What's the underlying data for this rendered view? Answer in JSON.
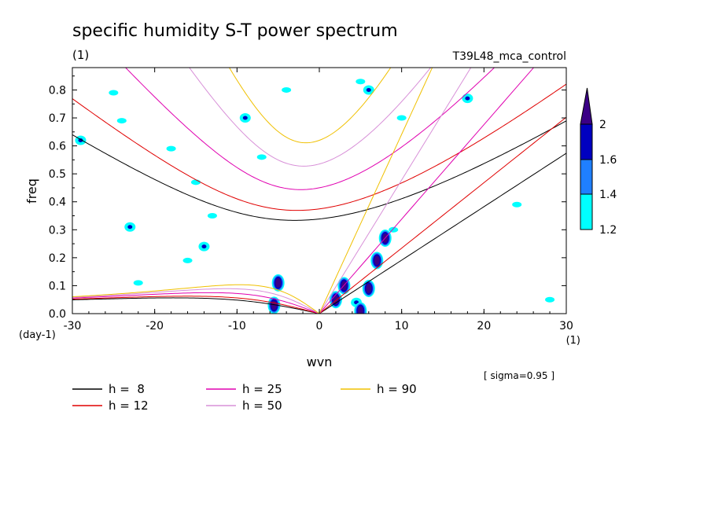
{
  "chart_data": {
    "type": "contour",
    "title": "specific humidity S-T power spectrum",
    "subtitle_left": "(1)",
    "subtitle_right": "T39L48_mca_control",
    "xlabel": "wvn",
    "ylabel": "freq",
    "x_unit": "(1)",
    "y_unit": "(day-1)",
    "sigma_note": "[ sigma=0.95 ]",
    "xlim": [
      -30,
      30
    ],
    "ylim": [
      0,
      0.88
    ],
    "xticks": [
      -30,
      -20,
      -10,
      0,
      10,
      20,
      30
    ],
    "xtick_labels": [
      "-30",
      "-20",
      "-10",
      "0",
      "10",
      "20",
      "30"
    ],
    "yticks": [
      0.0,
      0.1,
      0.2,
      0.3,
      0.4,
      0.5,
      0.6,
      0.7,
      0.8
    ],
    "ytick_labels": [
      "0.0",
      "0.1",
      "0.2",
      "0.3",
      "0.4",
      "0.5",
      "0.6",
      "0.7",
      "0.8"
    ],
    "colorbar": {
      "levels": [
        1.2,
        1.4,
        1.6,
        2
      ],
      "level_labels": [
        "1.2",
        "1.4",
        "1.6",
        "2"
      ],
      "colors": [
        "#00ffff",
        "#1f7fff",
        "#0000c0",
        "#3b0086"
      ]
    },
    "dispersion_curves": [
      {
        "h": 8,
        "label": "h =  8",
        "color": "#000000"
      },
      {
        "h": 12,
        "label": "h = 12",
        "color": "#e00000"
      },
      {
        "h": 25,
        "label": "h = 25",
        "color": "#e000b0"
      },
      {
        "h": 50,
        "label": "h = 50",
        "color": "#d890d8"
      },
      {
        "h": 90,
        "label": "h = 90",
        "color": "#f0c000"
      }
    ],
    "significant_regions": [
      {
        "wvn": -5,
        "freq": 0.11,
        "level": 2
      },
      {
        "wvn": -5.5,
        "freq": 0.03,
        "level": 2
      },
      {
        "wvn": 2,
        "freq": 0.05,
        "level": 2
      },
      {
        "wvn": 3,
        "freq": 0.1,
        "level": 2
      },
      {
        "wvn": 4.5,
        "freq": 0.04,
        "level": 1.6
      },
      {
        "wvn": 5,
        "freq": 0.01,
        "level": 2
      },
      {
        "wvn": 6,
        "freq": 0.09,
        "level": 2
      },
      {
        "wvn": 7,
        "freq": 0.19,
        "level": 2
      },
      {
        "wvn": 8,
        "freq": 0.27,
        "level": 2
      },
      {
        "wvn": -29,
        "freq": 0.62,
        "level": 1.6
      },
      {
        "wvn": -25,
        "freq": 0.79,
        "level": 1.2
      },
      {
        "wvn": -24,
        "freq": 0.69,
        "level": 1.2
      },
      {
        "wvn": -23,
        "freq": 0.31,
        "level": 1.6
      },
      {
        "wvn": -22,
        "freq": 0.11,
        "level": 1.2
      },
      {
        "wvn": -18,
        "freq": 0.59,
        "level": 1.2
      },
      {
        "wvn": -16,
        "freq": 0.19,
        "level": 1.2
      },
      {
        "wvn": -15,
        "freq": 0.47,
        "level": 1.2
      },
      {
        "wvn": -14,
        "freq": 0.24,
        "level": 1.6
      },
      {
        "wvn": -13,
        "freq": 0.35,
        "level": 1.2
      },
      {
        "wvn": -9,
        "freq": 0.7,
        "level": 1.6
      },
      {
        "wvn": -7,
        "freq": 0.56,
        "level": 1.2
      },
      {
        "wvn": -4,
        "freq": 0.8,
        "level": 1.2
      },
      {
        "wvn": 5,
        "freq": 0.83,
        "level": 1.2
      },
      {
        "wvn": 6,
        "freq": 0.8,
        "level": 1.6
      },
      {
        "wvn": 9,
        "freq": 0.3,
        "level": 1.2
      },
      {
        "wvn": 10,
        "freq": 0.7,
        "level": 1.2
      },
      {
        "wvn": 18,
        "freq": 0.77,
        "level": 1.6
      },
      {
        "wvn": 24,
        "freq": 0.39,
        "level": 1.2
      },
      {
        "wvn": 28,
        "freq": 0.05,
        "level": 1.2
      }
    ]
  }
}
